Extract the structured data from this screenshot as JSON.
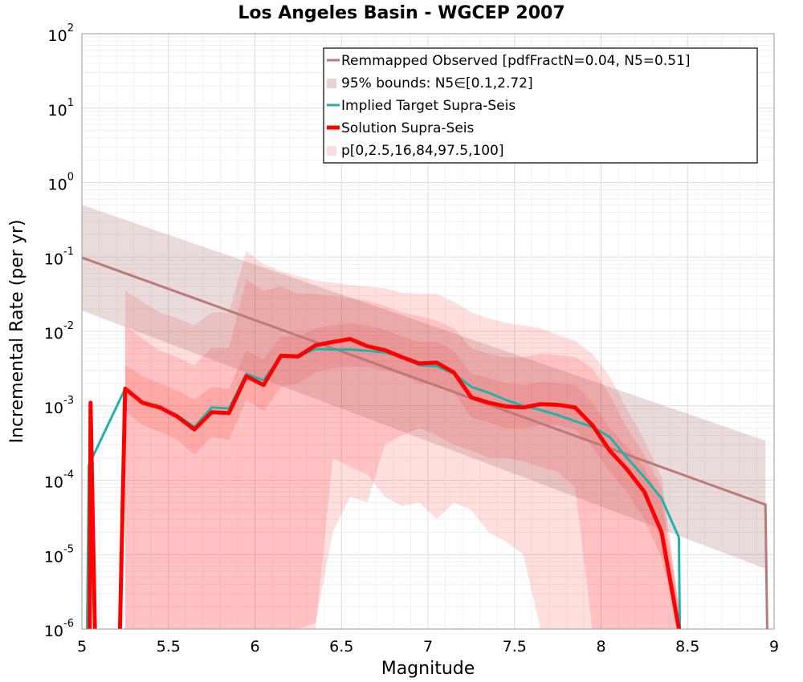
{
  "chart_data": {
    "type": "line",
    "title": "Los Angeles Basin - WGCEP 2007",
    "xlabel": "Magnitude",
    "ylabel": "Incremental Rate (per yr)",
    "xlim": [
      5,
      9
    ],
    "ylim": [
      1e-06,
      100
    ],
    "yscale": "log",
    "grid": true,
    "legend_position": "top-right",
    "x_ticks": [
      "5",
      "5.5",
      "6",
      "6.5",
      "7",
      "7.5",
      "8",
      "8.5",
      "9"
    ],
    "y_ticks": [
      {
        "base": "10",
        "exp": "2",
        "value": 100
      },
      {
        "base": "10",
        "exp": "1",
        "value": 10
      },
      {
        "base": "10",
        "exp": "0",
        "value": 1
      },
      {
        "base": "10",
        "exp": "-1",
        "value": 0.1
      },
      {
        "base": "10",
        "exp": "-2",
        "value": 0.01
      },
      {
        "base": "10",
        "exp": "-3",
        "value": 0.001
      },
      {
        "base": "10",
        "exp": "-4",
        "value": 0.0001
      },
      {
        "base": "10",
        "exp": "-5",
        "value": 1e-05
      },
      {
        "base": "10",
        "exp": "-6",
        "value": 1e-06
      }
    ],
    "legend": [
      {
        "label": "Remmapped Observed [pdfFractN=0.04, N5=0.51]",
        "style": "line",
        "color": "#b97a78"
      },
      {
        "label": "95% bounds: N5∈[0.1,2.72]",
        "style": "box",
        "color": "#e8d3d3"
      },
      {
        "label": "Implied Target Supra-Seis",
        "style": "line",
        "color": "#20b2aa"
      },
      {
        "label": "Solution Supra-Seis",
        "style": "thick-line",
        "color": "#ff0000"
      },
      {
        "label": "p[0,2.5,16,84,97.5,100]",
        "style": "box",
        "color": "#ffdcdc"
      }
    ],
    "series": [
      {
        "name": "Remmapped Observed [pdfFractN=0.04, N5=0.51]",
        "color": "#b97a78",
        "x": [
          5.0,
          8.95,
          8.96
        ],
        "y": [
          0.098,
          4.7e-05,
          1e-06
        ]
      },
      {
        "name": "95% bounds: N5∈[0.1,2.72]",
        "type": "band",
        "color": "#e8d3d3",
        "x": [
          5.0,
          8.95
        ],
        "lower": [
          0.019,
          6.5e-06
        ],
        "upper": [
          0.5,
          0.00034
        ]
      },
      {
        "name": "Implied Target Supra-Seis",
        "color": "#20b2aa",
        "x": [
          5.25,
          5.35,
          5.45,
          5.55,
          5.65,
          5.75,
          5.85,
          5.95,
          6.05,
          6.15,
          6.25,
          6.35,
          6.45,
          6.55,
          6.65,
          6.75,
          6.85,
          6.95,
          7.05,
          7.15,
          7.25,
          7.35,
          7.45,
          7.55,
          7.65,
          7.75,
          7.85,
          7.95,
          8.05,
          8.15,
          8.25,
          8.35,
          8.45
        ],
        "y": [
          0.0017,
          0.0011,
          0.00095,
          0.00075,
          0.00052,
          0.00095,
          0.00092,
          0.0027,
          0.0022,
          0.0047,
          0.0046,
          0.0058,
          0.0057,
          0.0057,
          0.0055,
          0.0052,
          0.0045,
          0.0035,
          0.0034,
          0.0027,
          0.0018,
          0.0015,
          0.0012,
          0.001,
          0.00088,
          0.00075,
          0.00062,
          0.00052,
          0.00038,
          0.0002,
          0.00011,
          5.7e-05,
          1.7e-05
        ]
      },
      {
        "name": "Solution Supra-Seis",
        "color": "#ff0000",
        "x": [
          5.05,
          5.25,
          5.35,
          5.45,
          5.55,
          5.65,
          5.75,
          5.85,
          5.95,
          6.05,
          6.15,
          6.25,
          6.35,
          6.45,
          6.55,
          6.65,
          6.75,
          6.85,
          6.95,
          7.05,
          7.15,
          7.25,
          7.35,
          7.45,
          7.55,
          7.65,
          7.75,
          7.85,
          7.95,
          8.05,
          8.15,
          8.25,
          8.35,
          8.45
        ],
        "y": [
          0.0011,
          0.0017,
          0.0011,
          0.00095,
          0.00072,
          0.00048,
          0.00082,
          0.0008,
          0.0025,
          0.0019,
          0.0047,
          0.0046,
          0.0065,
          0.0072,
          0.0079,
          0.0063,
          0.0056,
          0.0045,
          0.0037,
          0.0038,
          0.0028,
          0.0013,
          0.0011,
          0.00098,
          0.00095,
          0.00105,
          0.00103,
          0.00095,
          0.00055,
          0.00025,
          0.00014,
          7e-05,
          2e-05,
          1e-06
        ]
      }
    ],
    "percentile_bands": {
      "name": "p[0,2.5,16,84,97.5,100]",
      "color": "#ffdcdc",
      "x": [
        5.25,
        5.35,
        5.45,
        5.55,
        5.65,
        5.75,
        5.85,
        5.95,
        6.05,
        6.15,
        6.25,
        6.35,
        6.45,
        6.55,
        6.65,
        6.75,
        6.85,
        6.95,
        7.05,
        7.15,
        7.25,
        7.35,
        7.45,
        7.55,
        7.65,
        7.75,
        7.85,
        7.95,
        8.05,
        8.15,
        8.25,
        8.35,
        8.45
      ],
      "p0": [
        1e-06,
        1e-06,
        1e-06,
        1e-06,
        1e-06,
        1e-06,
        1e-06,
        1e-06,
        1e-06,
        1e-06,
        1e-06,
        1e-06,
        0.0002,
        0.00015,
        0.00012,
        6e-05,
        4.5e-05,
        5e-05,
        3e-05,
        5e-05,
        4e-05,
        2e-05,
        1.5e-05,
        1e-05,
        1e-06,
        1e-06,
        1e-06,
        1e-06,
        1e-06,
        1e-06,
        1e-06,
        1e-06,
        1e-06
      ],
      "p2_5": [
        1e-06,
        1e-06,
        1e-06,
        1e-06,
        1e-06,
        1e-06,
        1e-06,
        1e-06,
        1e-06,
        1e-06,
        1e-06,
        1.2e-06,
        2e-05,
        6e-05,
        5e-05,
        0.0003,
        0.0004,
        0.0005,
        0.0004,
        0.0003,
        0.00025,
        0.0002,
        0.0002,
        0.00018,
        0.00015,
        0.00013,
        8e-05,
        1e-06,
        1e-06,
        1e-06,
        1e-06,
        1e-06,
        1e-06
      ],
      "p16": [
        0.00085,
        0.00055,
        0.00045,
        0.00035,
        0.00022,
        0.00038,
        0.00035,
        0.0012,
        0.00085,
        0.0018,
        0.002,
        0.0028,
        0.0032,
        0.0034,
        0.0033,
        0.003,
        0.0026,
        0.002,
        0.0019,
        0.0015,
        0.0007,
        0.0006,
        0.0005,
        0.0005,
        0.00055,
        0.00055,
        0.00048,
        0.00028,
        0.00013,
        7e-05,
        3e-05,
        9e-06,
        1e-06
      ],
      "p84": [
        0.0035,
        0.0025,
        0.002,
        0.0016,
        0.0012,
        0.0018,
        0.0017,
        0.0055,
        0.0042,
        0.0085,
        0.0085,
        0.011,
        0.012,
        0.013,
        0.012,
        0.0105,
        0.0085,
        0.0072,
        0.0072,
        0.0055,
        0.0027,
        0.0024,
        0.002,
        0.0019,
        0.0021,
        0.002,
        0.0019,
        0.0011,
        0.0005,
        0.00028,
        0.00015,
        5e-05,
        2e-06
      ],
      "p97_5": [
        0.012,
        0.008,
        0.0055,
        0.0045,
        0.0035,
        0.006,
        0.006,
        0.05,
        0.035,
        0.04,
        0.032,
        0.032,
        0.03,
        0.028,
        0.026,
        0.022,
        0.018,
        0.016,
        0.014,
        0.011,
        0.006,
        0.005,
        0.0045,
        0.0045,
        0.005,
        0.0048,
        0.0045,
        0.0032,
        0.0014,
        0.0005,
        0.00022,
        8e-05,
        2e-06
      ],
      "p100": [
        0.035,
        0.025,
        0.018,
        0.015,
        0.012,
        0.018,
        0.018,
        0.12,
        0.08,
        0.065,
        0.055,
        0.048,
        0.045,
        0.042,
        0.04,
        0.038,
        0.033,
        0.032,
        0.032,
        0.025,
        0.018,
        0.015,
        0.013,
        0.012,
        0.011,
        0.009,
        0.0075,
        0.005,
        0.0025,
        0.0009,
        0.00035,
        0.00011,
        2e-06
      ]
    }
  }
}
